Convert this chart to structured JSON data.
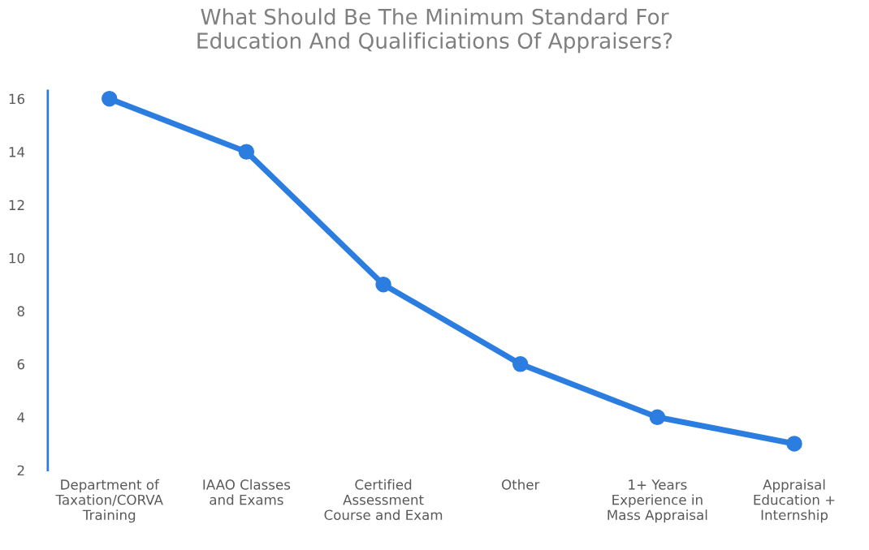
{
  "chart_data": {
    "type": "line",
    "title": "What Should Be The Minimum Standard For\nEducation And Qualificiations Of Appraisers?",
    "categories": [
      "Department of\nTaxation/CORVA\nTraining",
      "IAAO Classes\nand Exams",
      "Certified\nAssessment\nCourse and Exam",
      "Other",
      "1+ Years\nExperience in\nMass Appraisal",
      "Appraisal\nEducation +\nInternship"
    ],
    "values": [
      16,
      14,
      9,
      6,
      4,
      3
    ],
    "color": "#2b7de0",
    "ylim": [
      2,
      16.3
    ],
    "yticks": [
      2,
      4,
      6,
      8,
      10,
      12,
      14,
      16
    ],
    "marker": "circle",
    "line_style": "solid",
    "grid": false,
    "legend": false
  }
}
